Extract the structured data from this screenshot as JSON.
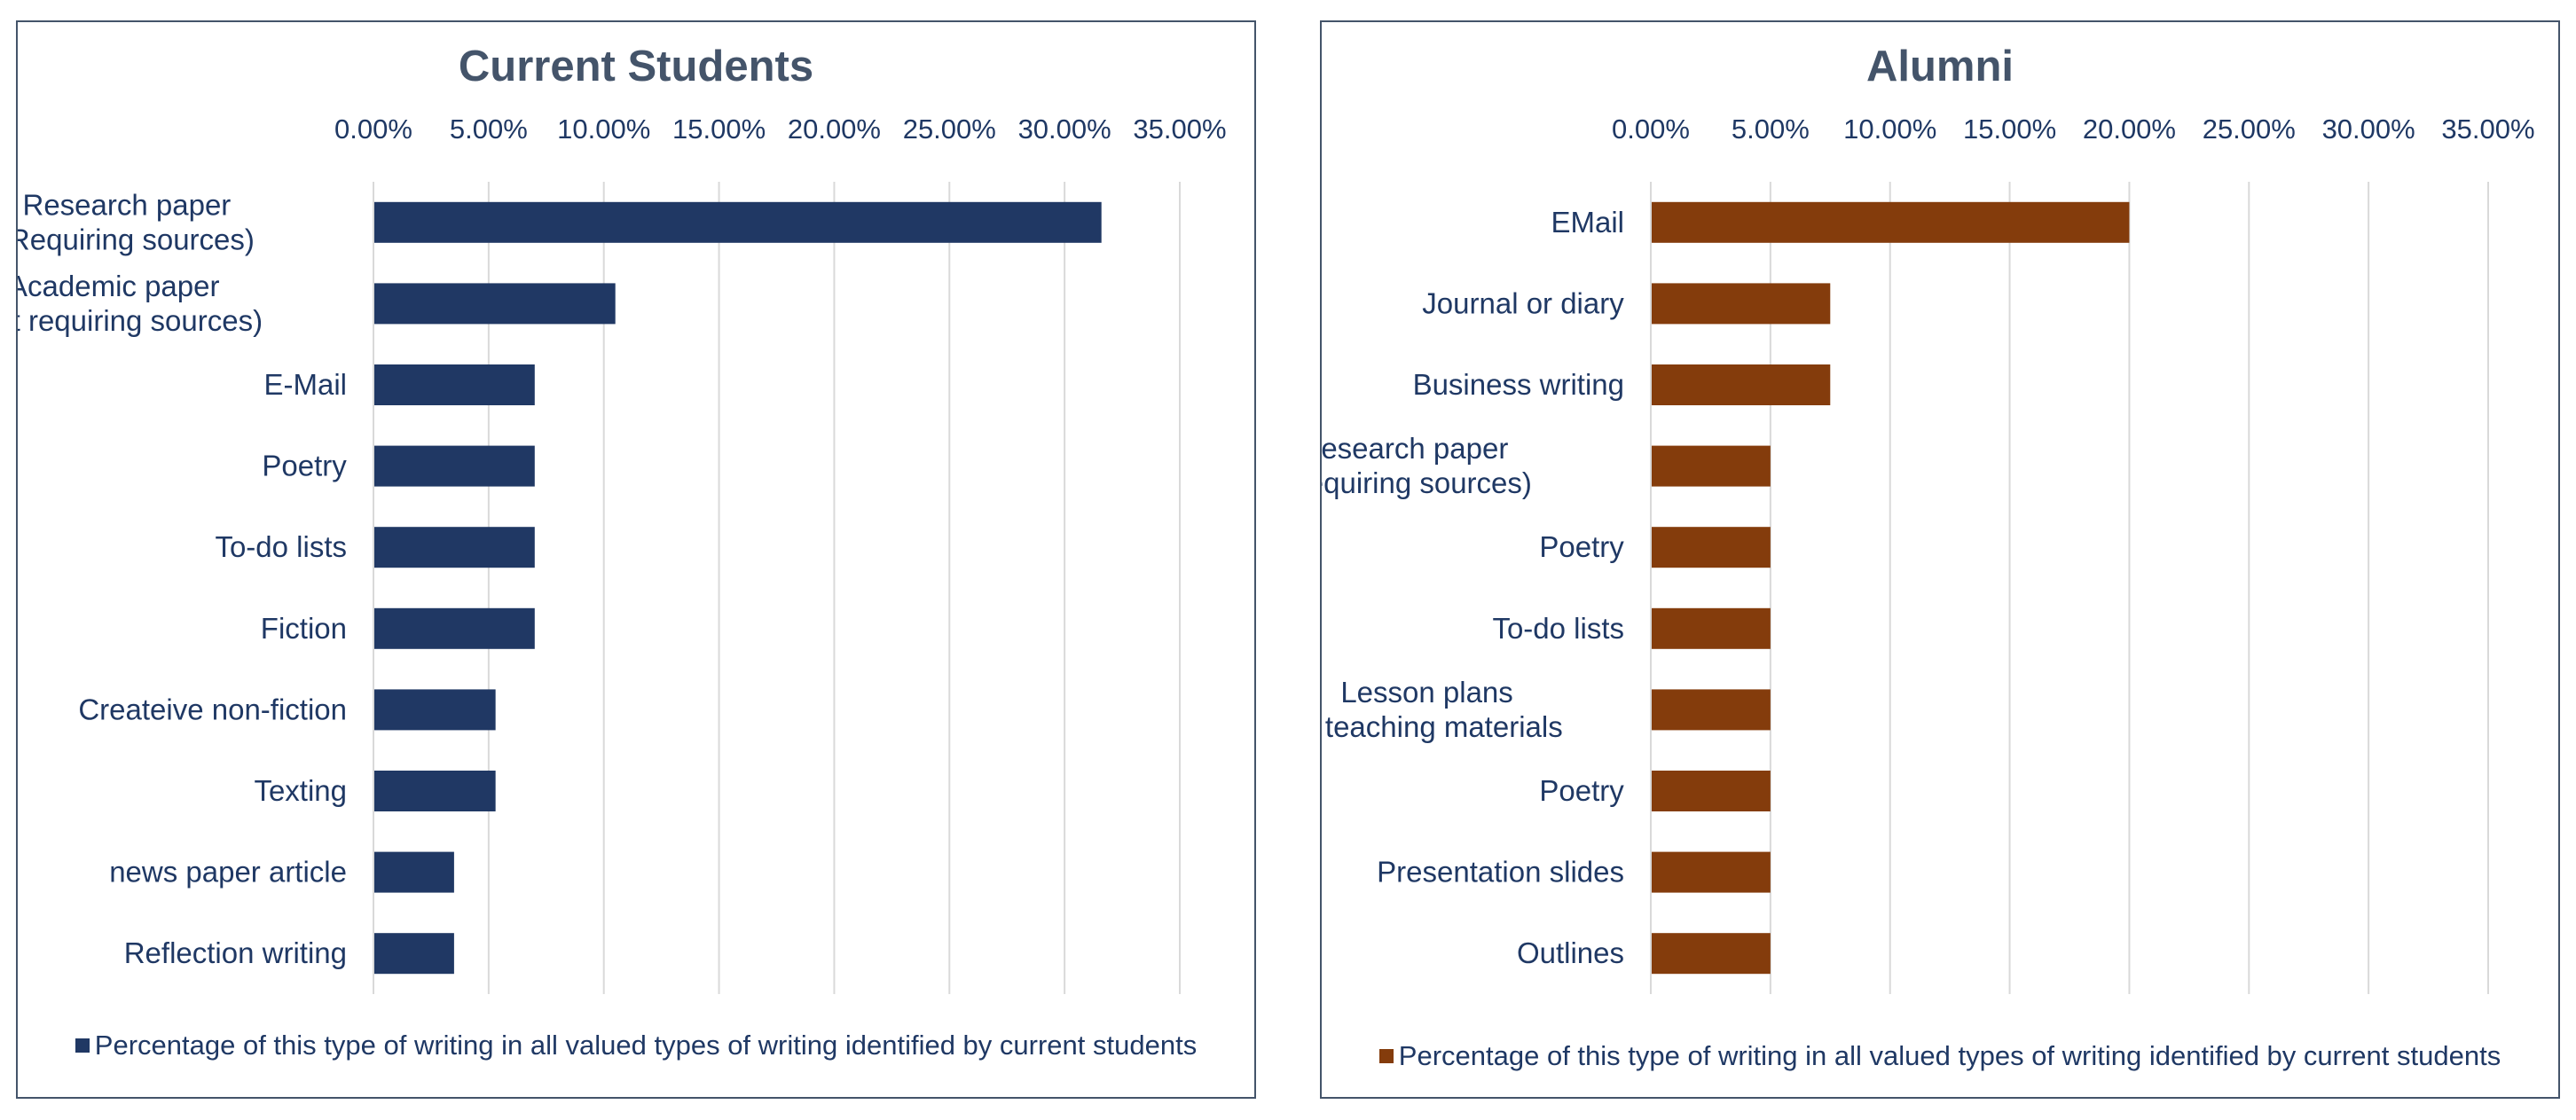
{
  "chart_data": [
    {
      "type": "bar",
      "orientation": "horizontal",
      "title": "Current Students",
      "color": "#203864",
      "xlim": [
        0,
        0.35
      ],
      "x_ticks": [
        "0.00%",
        "5.00%",
        "10.00%",
        "15.00%",
        "20.00%",
        "25.00%",
        "30.00%",
        "35.00%"
      ],
      "grid": true,
      "legend_position": "bottom",
      "categories": [
        "Research paper\n(Requiring sources)",
        "Academic paper\n(Not requiring sources)",
        "E-Mail",
        "Poetry",
        "To-do lists",
        "Fiction",
        "Createive non-fiction",
        "Texting",
        "news paper article",
        "Reflection writing"
      ],
      "series": [
        {
          "name": "Percentage of this type of writing in all valued types of writing identified by current students",
          "values": [
            0.316,
            0.105,
            0.07,
            0.07,
            0.07,
            0.07,
            0.053,
            0.053,
            0.035,
            0.035
          ]
        }
      ]
    },
    {
      "type": "bar",
      "orientation": "horizontal",
      "title": "Alumni",
      "color": "#843c0c",
      "xlim": [
        0,
        0.35
      ],
      "x_ticks": [
        "0.00%",
        "5.00%",
        "10.00%",
        "15.00%",
        "20.00%",
        "25.00%",
        "30.00%",
        "35.00%"
      ],
      "grid": true,
      "legend_position": "bottom",
      "categories": [
        "EMail",
        "Journal or diary",
        "Business writing",
        "Research paper\n(Requiring sources)",
        "Poetry",
        "To-do lists",
        "Lesson plans\nor teaching materials",
        "Poetry",
        "Presentation slides",
        "Outlines"
      ],
      "series": [
        {
          "name": "Percentage of this type of writing in all valued types of writing identified by current students",
          "values": [
            0.2,
            0.075,
            0.075,
            0.05,
            0.05,
            0.05,
            0.05,
            0.05,
            0.05,
            0.05
          ]
        }
      ]
    }
  ]
}
